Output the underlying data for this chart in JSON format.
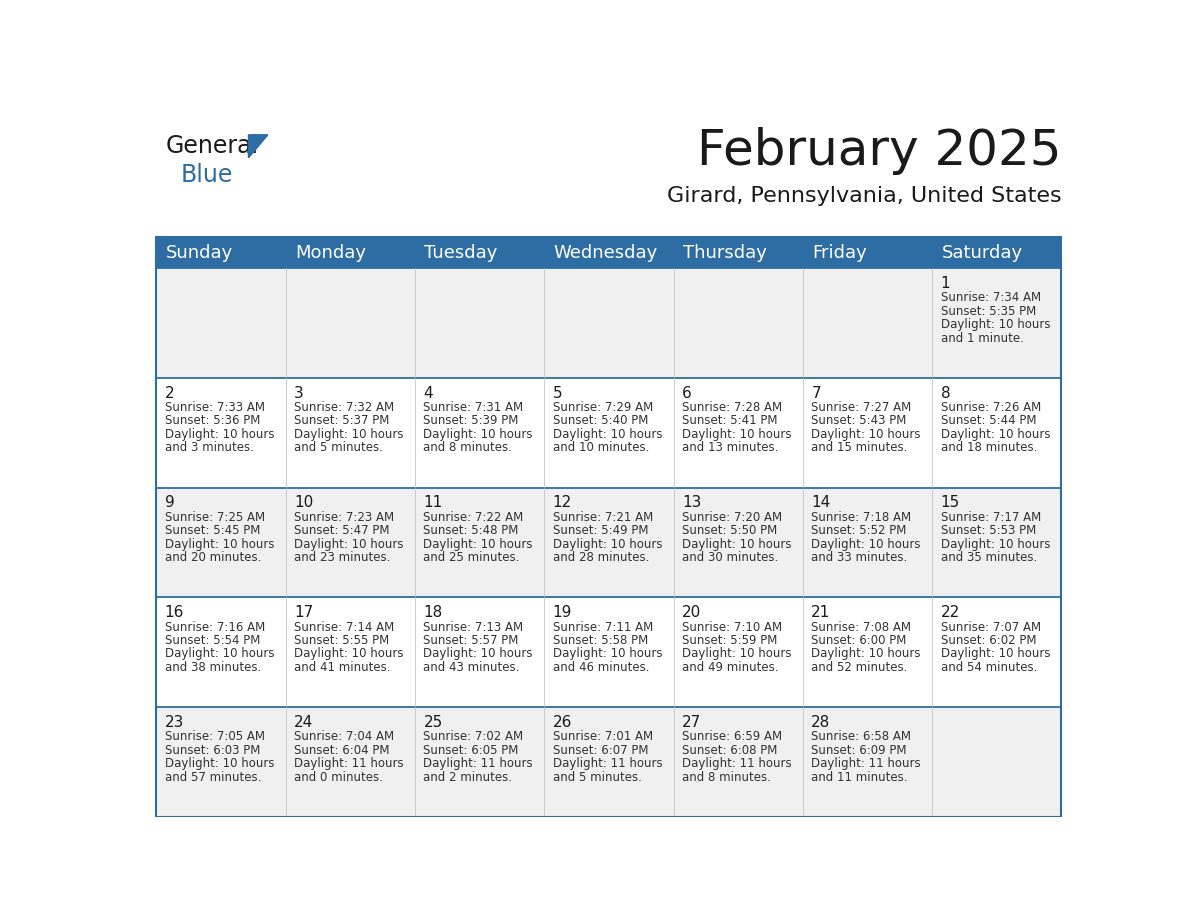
{
  "title": "February 2025",
  "subtitle": "Girard, Pennsylvania, United States",
  "header_bg": "#2E6DA4",
  "header_text": "#FFFFFF",
  "cell_bg": "#F0F0F0",
  "cell_bg_alt": "#FFFFFF",
  "border_color": "#2E6DA4",
  "day_names": [
    "Sunday",
    "Monday",
    "Tuesday",
    "Wednesday",
    "Thursday",
    "Friday",
    "Saturday"
  ],
  "title_fontsize": 36,
  "subtitle_fontsize": 16,
  "header_fontsize": 13,
  "day_num_fontsize": 11,
  "cell_fontsize": 8.5,
  "days": [
    {
      "day": 1,
      "col": 6,
      "row": 0,
      "lines": [
        "Sunrise: 7:34 AM",
        "Sunset: 5:35 PM",
        "Daylight: 10 hours",
        "and 1 minute."
      ]
    },
    {
      "day": 2,
      "col": 0,
      "row": 1,
      "lines": [
        "Sunrise: 7:33 AM",
        "Sunset: 5:36 PM",
        "Daylight: 10 hours",
        "and 3 minutes."
      ]
    },
    {
      "day": 3,
      "col": 1,
      "row": 1,
      "lines": [
        "Sunrise: 7:32 AM",
        "Sunset: 5:37 PM",
        "Daylight: 10 hours",
        "and 5 minutes."
      ]
    },
    {
      "day": 4,
      "col": 2,
      "row": 1,
      "lines": [
        "Sunrise: 7:31 AM",
        "Sunset: 5:39 PM",
        "Daylight: 10 hours",
        "and 8 minutes."
      ]
    },
    {
      "day": 5,
      "col": 3,
      "row": 1,
      "lines": [
        "Sunrise: 7:29 AM",
        "Sunset: 5:40 PM",
        "Daylight: 10 hours",
        "and 10 minutes."
      ]
    },
    {
      "day": 6,
      "col": 4,
      "row": 1,
      "lines": [
        "Sunrise: 7:28 AM",
        "Sunset: 5:41 PM",
        "Daylight: 10 hours",
        "and 13 minutes."
      ]
    },
    {
      "day": 7,
      "col": 5,
      "row": 1,
      "lines": [
        "Sunrise: 7:27 AM",
        "Sunset: 5:43 PM",
        "Daylight: 10 hours",
        "and 15 minutes."
      ]
    },
    {
      "day": 8,
      "col": 6,
      "row": 1,
      "lines": [
        "Sunrise: 7:26 AM",
        "Sunset: 5:44 PM",
        "Daylight: 10 hours",
        "and 18 minutes."
      ]
    },
    {
      "day": 9,
      "col": 0,
      "row": 2,
      "lines": [
        "Sunrise: 7:25 AM",
        "Sunset: 5:45 PM",
        "Daylight: 10 hours",
        "and 20 minutes."
      ]
    },
    {
      "day": 10,
      "col": 1,
      "row": 2,
      "lines": [
        "Sunrise: 7:23 AM",
        "Sunset: 5:47 PM",
        "Daylight: 10 hours",
        "and 23 minutes."
      ]
    },
    {
      "day": 11,
      "col": 2,
      "row": 2,
      "lines": [
        "Sunrise: 7:22 AM",
        "Sunset: 5:48 PM",
        "Daylight: 10 hours",
        "and 25 minutes."
      ]
    },
    {
      "day": 12,
      "col": 3,
      "row": 2,
      "lines": [
        "Sunrise: 7:21 AM",
        "Sunset: 5:49 PM",
        "Daylight: 10 hours",
        "and 28 minutes."
      ]
    },
    {
      "day": 13,
      "col": 4,
      "row": 2,
      "lines": [
        "Sunrise: 7:20 AM",
        "Sunset: 5:50 PM",
        "Daylight: 10 hours",
        "and 30 minutes."
      ]
    },
    {
      "day": 14,
      "col": 5,
      "row": 2,
      "lines": [
        "Sunrise: 7:18 AM",
        "Sunset: 5:52 PM",
        "Daylight: 10 hours",
        "and 33 minutes."
      ]
    },
    {
      "day": 15,
      "col": 6,
      "row": 2,
      "lines": [
        "Sunrise: 7:17 AM",
        "Sunset: 5:53 PM",
        "Daylight: 10 hours",
        "and 35 minutes."
      ]
    },
    {
      "day": 16,
      "col": 0,
      "row": 3,
      "lines": [
        "Sunrise: 7:16 AM",
        "Sunset: 5:54 PM",
        "Daylight: 10 hours",
        "and 38 minutes."
      ]
    },
    {
      "day": 17,
      "col": 1,
      "row": 3,
      "lines": [
        "Sunrise: 7:14 AM",
        "Sunset: 5:55 PM",
        "Daylight: 10 hours",
        "and 41 minutes."
      ]
    },
    {
      "day": 18,
      "col": 2,
      "row": 3,
      "lines": [
        "Sunrise: 7:13 AM",
        "Sunset: 5:57 PM",
        "Daylight: 10 hours",
        "and 43 minutes."
      ]
    },
    {
      "day": 19,
      "col": 3,
      "row": 3,
      "lines": [
        "Sunrise: 7:11 AM",
        "Sunset: 5:58 PM",
        "Daylight: 10 hours",
        "and 46 minutes."
      ]
    },
    {
      "day": 20,
      "col": 4,
      "row": 3,
      "lines": [
        "Sunrise: 7:10 AM",
        "Sunset: 5:59 PM",
        "Daylight: 10 hours",
        "and 49 minutes."
      ]
    },
    {
      "day": 21,
      "col": 5,
      "row": 3,
      "lines": [
        "Sunrise: 7:08 AM",
        "Sunset: 6:00 PM",
        "Daylight: 10 hours",
        "and 52 minutes."
      ]
    },
    {
      "day": 22,
      "col": 6,
      "row": 3,
      "lines": [
        "Sunrise: 7:07 AM",
        "Sunset: 6:02 PM",
        "Daylight: 10 hours",
        "and 54 minutes."
      ]
    },
    {
      "day": 23,
      "col": 0,
      "row": 4,
      "lines": [
        "Sunrise: 7:05 AM",
        "Sunset: 6:03 PM",
        "Daylight: 10 hours",
        "and 57 minutes."
      ]
    },
    {
      "day": 24,
      "col": 1,
      "row": 4,
      "lines": [
        "Sunrise: 7:04 AM",
        "Sunset: 6:04 PM",
        "Daylight: 11 hours",
        "and 0 minutes."
      ]
    },
    {
      "day": 25,
      "col": 2,
      "row": 4,
      "lines": [
        "Sunrise: 7:02 AM",
        "Sunset: 6:05 PM",
        "Daylight: 11 hours",
        "and 2 minutes."
      ]
    },
    {
      "day": 26,
      "col": 3,
      "row": 4,
      "lines": [
        "Sunrise: 7:01 AM",
        "Sunset: 6:07 PM",
        "Daylight: 11 hours",
        "and 5 minutes."
      ]
    },
    {
      "day": 27,
      "col": 4,
      "row": 4,
      "lines": [
        "Sunrise: 6:59 AM",
        "Sunset: 6:08 PM",
        "Daylight: 11 hours",
        "and 8 minutes."
      ]
    },
    {
      "day": 28,
      "col": 5,
      "row": 4,
      "lines": [
        "Sunrise: 6:58 AM",
        "Sunset: 6:09 PM",
        "Daylight: 11 hours",
        "and 11 minutes."
      ]
    }
  ]
}
